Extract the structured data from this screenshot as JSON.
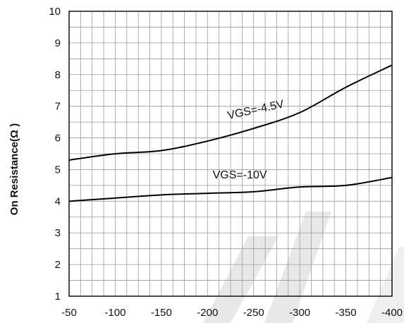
{
  "chart_data": {
    "type": "line",
    "title": "",
    "xlabel": "",
    "ylabel": "On Resistance(Ω )",
    "xlim": [
      -50,
      -400
    ],
    "ylim": [
      1,
      10
    ],
    "grid": true,
    "x_ticks": [
      "-50",
      "-100",
      "-150",
      "-200",
      "-250",
      "-300",
      "-350",
      "-400"
    ],
    "y_ticks": [
      "1",
      "2",
      "3",
      "4",
      "5",
      "6",
      "7",
      "8",
      "9",
      "10"
    ],
    "series": [
      {
        "name": "VGS=-4.5V",
        "x": [
          -50,
          -100,
          -150,
          -200,
          -250,
          -300,
          -350,
          -400
        ],
        "y": [
          5.3,
          5.5,
          5.6,
          5.9,
          6.3,
          6.8,
          7.6,
          8.3
        ]
      },
      {
        "name": "VGS=-10V",
        "x": [
          -50,
          -100,
          -150,
          -200,
          -250,
          -300,
          -350,
          -400
        ],
        "y": [
          4.0,
          4.1,
          4.2,
          4.25,
          4.3,
          4.45,
          4.5,
          4.75
        ]
      }
    ],
    "watermark_color": "#e8e8e8",
    "line_color": "#000000"
  }
}
